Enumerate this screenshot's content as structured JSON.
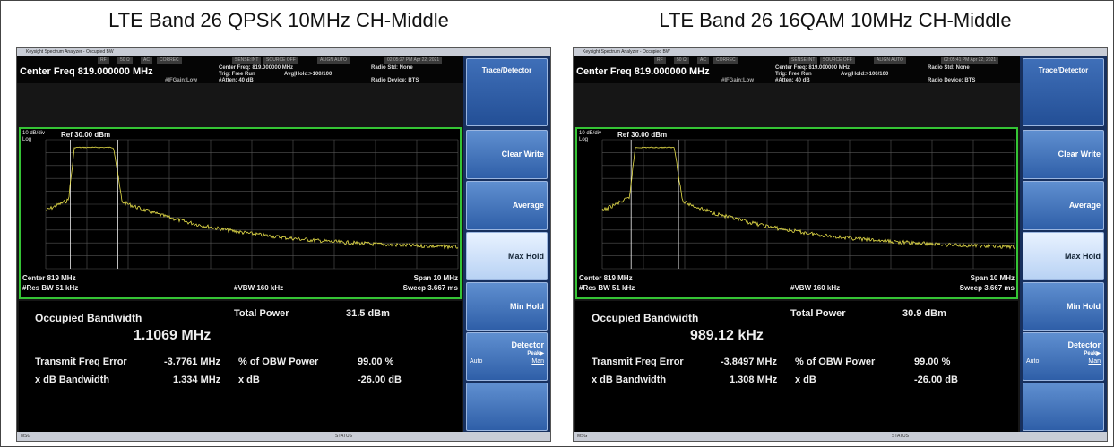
{
  "panels": [
    {
      "title": "LTE Band 26 QPSK 10MHz CH-Middle",
      "window_title": "Keysight Spectrum Analyzer - Occupied BW",
      "status_row": [
        "RF",
        "50 Ω",
        "AC",
        "CORREC",
        "SENSE:INT",
        "SOURCE OFF",
        "ALIGN AUTO",
        "02:05:27 PM Apr 22, 2021"
      ],
      "center_freq": "Center Freq 819.000000 MHz",
      "ifgain": "#IFGain:Low",
      "settings": [
        "Center Freq: 819.000000 MHz",
        "Trig: Free Run",
        "#Atten: 40 dB"
      ],
      "avg_hold": "Avg|Hold:>100/100",
      "radio_std": "Radio Std: None",
      "radio_device": "Radio Device: BTS",
      "menu_title": "Trace/Detector",
      "scale_div": "10 dB/div",
      "scale_type": "Log",
      "ref_level": "Ref 30.00 dBm",
      "center": "Center 819 MHz",
      "res_bw": "#Res BW 51 kHz",
      "vbw": "#VBW 160 kHz",
      "span": "Span 10 MHz",
      "sweep": "Sweep 3.667 ms",
      "obw_label": "Occupied Bandwidth",
      "obw_value": "1.1069 MHz",
      "total_power_label": "Total Power",
      "total_power": "31.5 dBm",
      "freq_error_label": "Transmit Freq Error",
      "freq_error": "-3.7761 MHz",
      "obw_power_label": "% of OBW Power",
      "obw_power": "99.00 %",
      "xdb_bw_label": "x dB Bandwidth",
      "xdb_bw": "1.334 MHz",
      "xdb_label": "x dB",
      "xdb": "-26.00 dB",
      "softkeys": [
        "Clear Write",
        "Average",
        "Max Hold",
        "Min Hold"
      ],
      "detector": "Detector",
      "detector_value": "Peak▶",
      "auto": "Auto",
      "man": "Man",
      "msg": "MSG",
      "status": "STATUS"
    },
    {
      "title": "LTE Band 26 16QAM 10MHz CH-Middle",
      "window_title": "Keysight Spectrum Analyzer - Occupied BW",
      "status_row": [
        "RF",
        "50 Ω",
        "AC",
        "CORREC",
        "SENSE:INT",
        "SOURCE OFF",
        "ALIGN AUTO",
        "02:05:41 PM Apr 22, 2021"
      ],
      "center_freq": "Center Freq 819.000000 MHz",
      "ifgain": "#IFGain:Low",
      "settings": [
        "Center Freq: 819.000000 MHz",
        "Trig: Free Run",
        "#Atten: 40 dB"
      ],
      "avg_hold": "Avg|Hold:>100/100",
      "radio_std": "Radio Std: None",
      "radio_device": "Radio Device: BTS",
      "menu_title": "Trace/Detector",
      "scale_div": "10 dB/div",
      "scale_type": "Log",
      "ref_level": "Ref 30.00 dBm",
      "center": "Center 819 MHz",
      "res_bw": "#Res BW 51 kHz",
      "vbw": "#VBW 160 kHz",
      "span": "Span 10 MHz",
      "sweep": "Sweep 3.667 ms",
      "obw_label": "Occupied Bandwidth",
      "obw_value": "989.12 kHz",
      "total_power_label": "Total Power",
      "total_power": "30.9 dBm",
      "freq_error_label": "Transmit Freq Error",
      "freq_error": "-3.8497 MHz",
      "obw_power_label": "% of OBW Power",
      "obw_power": "99.00 %",
      "xdb_bw_label": "x dB Bandwidth",
      "xdb_bw": "1.308 MHz",
      "xdb_label": "x dB",
      "xdb": "-26.00 dB",
      "softkeys": [
        "Clear Write",
        "Average",
        "Max Hold",
        "Min Hold"
      ],
      "detector": "Detector",
      "detector_value": "Peak▶",
      "auto": "Auto",
      "man": "Man",
      "msg": "MSG",
      "status": "STATUS"
    }
  ]
}
